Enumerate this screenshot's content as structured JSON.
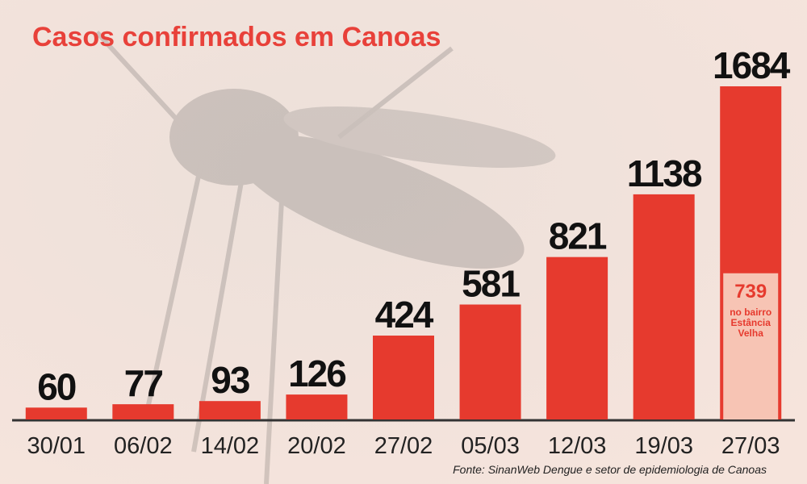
{
  "chart_data": {
    "type": "bar",
    "title": "Casos confirmados em Canoas",
    "categories": [
      "30/01",
      "06/02",
      "14/02",
      "20/02",
      "27/02",
      "05/03",
      "12/03",
      "19/03",
      "27/03"
    ],
    "values": [
      60,
      77,
      93,
      126,
      424,
      581,
      821,
      1138,
      1684
    ],
    "color": "#e63a2e",
    "highlight": {
      "value": 739,
      "label": "no bairro Estância Velha",
      "color": "#f7c4b4"
    },
    "source": "Fonte: SinanWeb Dengue e setor de epidemiologia de Canoas"
  }
}
